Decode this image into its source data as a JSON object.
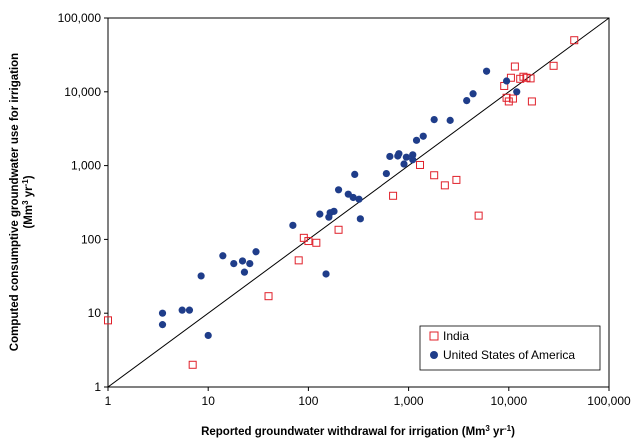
{
  "chart_data": {
    "type": "scatter",
    "x_scale": "log",
    "y_scale": "log",
    "xlim": [
      1,
      100000
    ],
    "ylim": [
      1,
      100000
    ],
    "x_ticks": [
      "1",
      "10",
      "100",
      "1,000",
      "10,000",
      "100,000"
    ],
    "y_ticks": [
      "1",
      "10",
      "100",
      "1,000",
      "10,000",
      "100,000"
    ],
    "xlabel": {
      "main": "Reported groundwater withdrawal for irrigation (Mm",
      "sup": "3",
      "mid": " yr",
      "sup2": "-1",
      "end": ")"
    },
    "ylabel": {
      "line1": "Computed consumptive groundwater use for irrigation",
      "line2_a": "(Mm",
      "line2_sup": "3",
      "line2_b": " yr",
      "line2_sup2": "-1",
      "line2_c": ")"
    },
    "reference_line": "1:1",
    "grid": false,
    "legend_position": "bottom-right",
    "series": [
      {
        "name": "India",
        "marker": "open-square",
        "color": "#e0202a",
        "points": [
          [
            1,
            8
          ],
          [
            7,
            2
          ],
          [
            40,
            17
          ],
          [
            80,
            52
          ],
          [
            90,
            105
          ],
          [
            100,
            95
          ],
          [
            120,
            90
          ],
          [
            200,
            135
          ],
          [
            700,
            390
          ],
          [
            1300,
            1020
          ],
          [
            1800,
            740
          ],
          [
            2300,
            540
          ],
          [
            3000,
            640
          ],
          [
            5000,
            210
          ],
          [
            9000,
            12000
          ],
          [
            9500,
            8300
          ],
          [
            10000,
            7400
          ],
          [
            10500,
            15500
          ],
          [
            11000,
            8100
          ],
          [
            11500,
            22000
          ],
          [
            13000,
            15000
          ],
          [
            14000,
            16000
          ],
          [
            15000,
            15500
          ],
          [
            16500,
            15200
          ],
          [
            17000,
            7400
          ],
          [
            28000,
            22500
          ],
          [
            45000,
            50000
          ]
        ]
      },
      {
        "name": "United States of America",
        "marker": "filled-circle",
        "color": "#1f3d8a",
        "points": [
          [
            3.5,
            7
          ],
          [
            3.5,
            10
          ],
          [
            5.5,
            11
          ],
          [
            6.5,
            11
          ],
          [
            8.5,
            32
          ],
          [
            10,
            5
          ],
          [
            14,
            60
          ],
          [
            18,
            47
          ],
          [
            22,
            51
          ],
          [
            23,
            36
          ],
          [
            26,
            47
          ],
          [
            30,
            68
          ],
          [
            70,
            155
          ],
          [
            130,
            220
          ],
          [
            150,
            34
          ],
          [
            160,
            200
          ],
          [
            165,
            230
          ],
          [
            180,
            240
          ],
          [
            200,
            470
          ],
          [
            250,
            410
          ],
          [
            280,
            370
          ],
          [
            290,
            760
          ],
          [
            320,
            350
          ],
          [
            330,
            190
          ],
          [
            600,
            780
          ],
          [
            650,
            1330
          ],
          [
            780,
            1350
          ],
          [
            800,
            1450
          ],
          [
            900,
            1050
          ],
          [
            950,
            1300
          ],
          [
            1100,
            1400
          ],
          [
            1100,
            1200
          ],
          [
            1200,
            2200
          ],
          [
            1400,
            2500
          ],
          [
            1800,
            4200
          ],
          [
            2600,
            4100
          ],
          [
            3800,
            7600
          ],
          [
            4400,
            9400
          ],
          [
            6000,
            19000
          ],
          [
            9500,
            14000
          ],
          [
            12000,
            10000
          ]
        ]
      }
    ]
  }
}
